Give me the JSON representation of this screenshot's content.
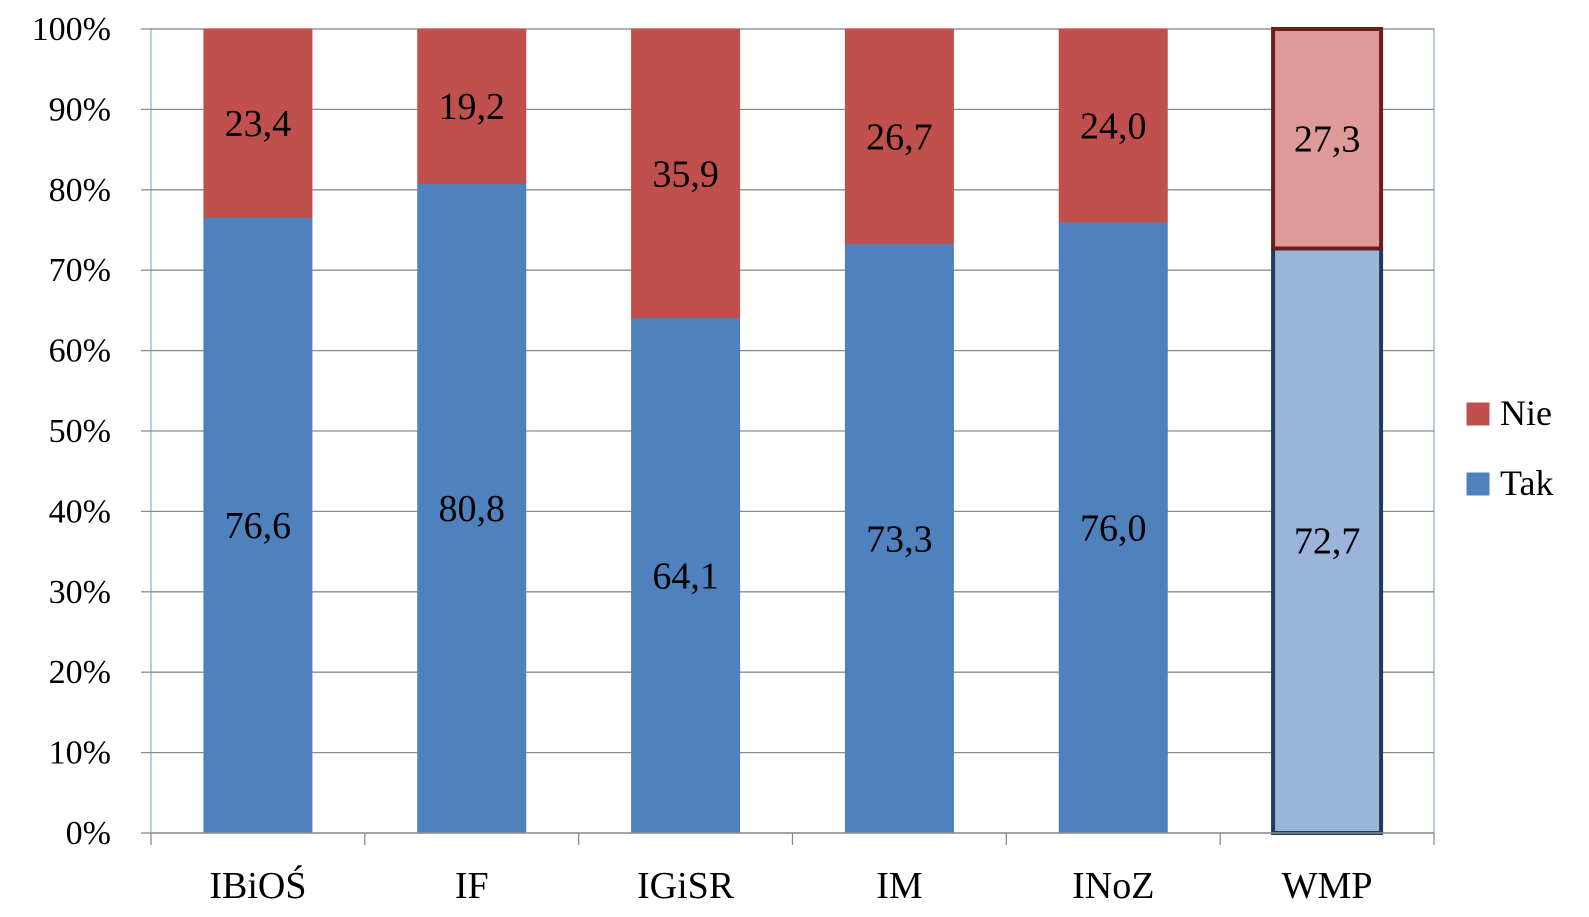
{
  "chart_data": {
    "type": "bar",
    "stacked": true,
    "percent_stacked": true,
    "categories": [
      "IBiOŚ",
      "IF",
      "IGiSR",
      "IM",
      "INoZ",
      "WMP"
    ],
    "series": [
      {
        "name": "Tak",
        "color": "#4F81BD",
        "highlight_color": "#9BB4D9",
        "highlight_border": "#1F3A5F",
        "values": [
          76.6,
          80.8,
          64.1,
          73.3,
          76.0,
          72.7
        ],
        "labels": [
          "76,6",
          "80,8",
          "64,1",
          "73,3",
          "76,0",
          "72,7"
        ]
      },
      {
        "name": "Nie",
        "color": "#C0504D",
        "highlight_color": "#DE9A98",
        "highlight_border": "#6B1F1D",
        "values": [
          23.4,
          19.2,
          35.9,
          26.7,
          24.0,
          27.3
        ],
        "labels": [
          "23,4",
          "19,2",
          "35,9",
          "26,7",
          "24,0",
          "27,3"
        ]
      }
    ],
    "highlighted_category": "WMP",
    "y_ticks": [
      "0%",
      "10%",
      "20%",
      "30%",
      "40%",
      "50%",
      "60%",
      "70%",
      "80%",
      "90%",
      "100%"
    ],
    "ylim": [
      0,
      100
    ],
    "grid": true,
    "legend_position": "right",
    "legend_order": [
      "Nie",
      "Tak"
    ],
    "title": "",
    "xlabel": "",
    "ylabel": ""
  }
}
